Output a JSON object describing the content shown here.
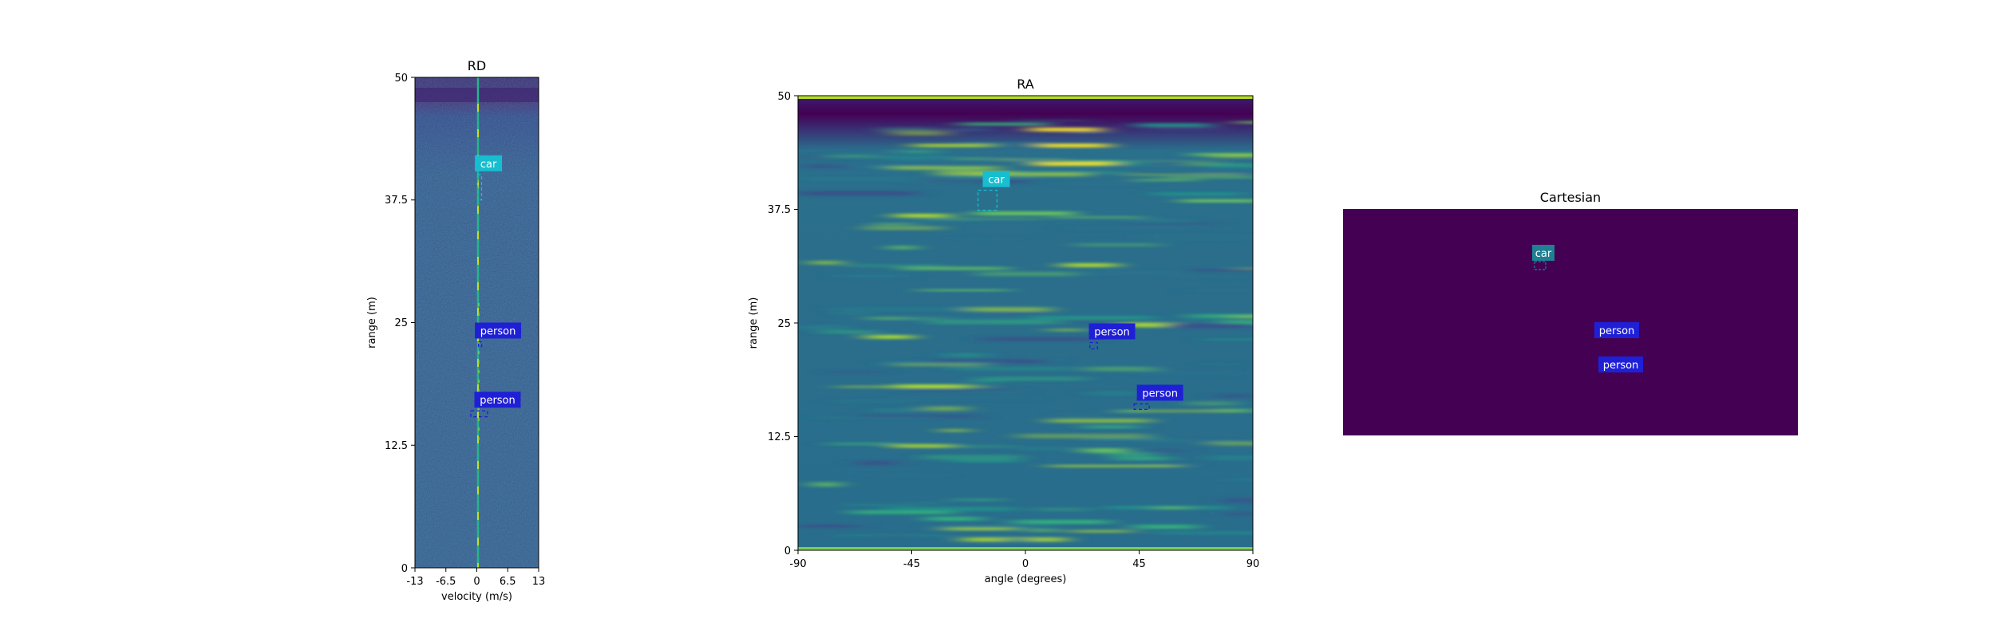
{
  "chart_data": [
    {
      "type": "heatmap",
      "title": "RD",
      "xlabel": "velocity (m/s)",
      "ylabel": "range (m)",
      "xlim": [
        -13,
        13
      ],
      "ylim": [
        0,
        50
      ],
      "xticks": [
        "-13",
        "-6.5",
        "0",
        "6.5",
        "13"
      ],
      "yticks": [
        "0",
        "12.5",
        "25",
        "37.5",
        "50"
      ],
      "colormap": "viridis",
      "zero_velocity_line": true,
      "annotations": [
        {
          "label": "car",
          "x": 0.6,
          "y": 38.8,
          "box_w": 0.8,
          "box_h": 2.6,
          "color": "#17becf"
        },
        {
          "label": "person",
          "x": 0.6,
          "y": 22.8,
          "box_w": 0.5,
          "box_h": 0.5,
          "color": "#1f20d6"
        },
        {
          "label": "person",
          "x": 0.5,
          "y": 15.7,
          "box_w": 3.5,
          "box_h": 0.6,
          "color": "#1f20d6"
        }
      ]
    },
    {
      "type": "heatmap",
      "title": "RA",
      "xlabel": "angle (degrees)",
      "ylabel": "range (m)",
      "xlim": [
        -90,
        90
      ],
      "ylim": [
        0,
        50
      ],
      "xticks": [
        "-90",
        "-45",
        "0",
        "45",
        "90"
      ],
      "yticks": [
        "0",
        "12.5",
        "25",
        "37.5",
        "50"
      ],
      "colormap": "viridis",
      "annotations": [
        {
          "label": "car",
          "x": -15,
          "y": 38.5,
          "box_w": 7.5,
          "box_h": 2.2,
          "color": "#17becf"
        },
        {
          "label": "person",
          "x": 27,
          "y": 22.5,
          "box_w": 3,
          "box_h": 0.7,
          "color": "#1f20d6"
        },
        {
          "label": "person",
          "x": 46,
          "y": 15.8,
          "box_w": 6,
          "box_h": 0.6,
          "color": "#1f20d6"
        }
      ]
    },
    {
      "type": "heatmap",
      "title": "Cartesian",
      "background": "#440154",
      "annotations": [
        {
          "label": "car",
          "color": "#1f7f93"
        },
        {
          "label": "person",
          "color": "#1f20d6"
        },
        {
          "label": "person",
          "color": "#1f20d6"
        }
      ]
    }
  ]
}
